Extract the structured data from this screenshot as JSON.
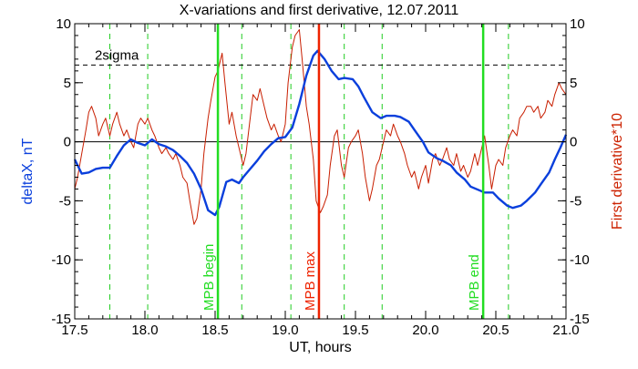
{
  "chart_data": {
    "type": "line",
    "title": "X-variations and first derivative, 12.07.2011",
    "xlabel": "UT, hours",
    "ylabel_left": "deltaX, nT",
    "ylabel_right": "First derivative*10",
    "xlim": [
      17.5,
      21.0
    ],
    "ylim": [
      -15,
      10
    ],
    "xticks": [
      17.5,
      18.0,
      18.5,
      19.0,
      19.5,
      20.0,
      20.5,
      21.0
    ],
    "xtick_labels": [
      "17.5",
      "18.0",
      "18.5",
      "19.0",
      "19.5",
      "20.0",
      "20.5",
      "21.0"
    ],
    "yticks": [
      -15,
      -10,
      -5,
      0,
      5,
      10
    ],
    "ytick_labels": [
      "-15",
      "-10",
      "-5",
      "0",
      "5",
      "10"
    ],
    "colors": {
      "deltaX": "#0a3fdc",
      "derivative": "#c81e00",
      "mpb_begin_end": "#22dd22",
      "mpb_max": "#ee2200",
      "dashed_green": "#22cc22",
      "left_label": "#0a3fdc",
      "right_label": "#cc2200"
    },
    "series": [
      {
        "key": "deltaX",
        "x": [
          17.5,
          17.55,
          17.6,
          17.65,
          17.7,
          17.75,
          17.8,
          17.85,
          17.9,
          17.95,
          18.0,
          18.05,
          18.1,
          18.15,
          18.2,
          18.25,
          18.3,
          18.35,
          18.4,
          18.45,
          18.5,
          18.53,
          18.58,
          18.62,
          18.67,
          18.7,
          18.75,
          18.8,
          18.85,
          18.9,
          18.95,
          19.0,
          19.05,
          19.1,
          19.15,
          19.2,
          19.23,
          19.28,
          19.33,
          19.38,
          19.42,
          19.48,
          19.52,
          19.56,
          19.62,
          19.68,
          19.72,
          19.78,
          19.82,
          19.88,
          19.92,
          19.98,
          20.02,
          20.08,
          20.12,
          20.18,
          20.22,
          20.28,
          20.32,
          20.38,
          20.42,
          20.48,
          20.52,
          20.58,
          20.62,
          20.68,
          20.72,
          20.78,
          20.82,
          20.88,
          20.92,
          20.96,
          21.0
        ],
        "values": [
          -1.5,
          -2.7,
          -2.6,
          -2.3,
          -2.2,
          -2.2,
          -1.2,
          -0.3,
          0.2,
          -0.1,
          -0.3,
          0.2,
          -0.2,
          -0.4,
          -0.7,
          -1.2,
          -1.8,
          -2.7,
          -4.0,
          -5.8,
          -6.2,
          -5.5,
          -3.4,
          -3.2,
          -3.5,
          -3.0,
          -2.3,
          -1.6,
          -0.8,
          -0.2,
          0.3,
          0.4,
          1.2,
          3.2,
          5.6,
          7.3,
          7.7,
          7.0,
          6.0,
          5.3,
          5.4,
          5.3,
          4.7,
          3.8,
          2.5,
          2.0,
          2.2,
          2.2,
          2.1,
          1.7,
          1.0,
          0.0,
          -0.9,
          -1.4,
          -1.6,
          -2.0,
          -2.6,
          -3.2,
          -3.8,
          -4.1,
          -4.3,
          -4.3,
          -4.8,
          -5.4,
          -5.6,
          -5.4,
          -5.0,
          -4.3,
          -3.6,
          -2.6,
          -1.5,
          -0.5,
          0.6
        ]
      },
      {
        "key": "derivative",
        "x": [
          17.5,
          17.52,
          17.55,
          17.58,
          17.6,
          17.62,
          17.65,
          17.67,
          17.7,
          17.72,
          17.75,
          17.77,
          17.8,
          17.82,
          17.85,
          17.87,
          17.9,
          17.92,
          17.95,
          17.97,
          18.0,
          18.02,
          18.05,
          18.07,
          18.1,
          18.12,
          18.15,
          18.17,
          18.2,
          18.22,
          18.25,
          18.27,
          18.3,
          18.32,
          18.35,
          18.37,
          18.4,
          18.42,
          18.45,
          18.47,
          18.5,
          18.52,
          18.55,
          18.57,
          18.6,
          18.62,
          18.65,
          18.67,
          18.7,
          18.72,
          18.75,
          18.77,
          18.8,
          18.82,
          18.85,
          18.87,
          18.9,
          18.92,
          18.95,
          18.97,
          19.0,
          19.02,
          19.05,
          19.07,
          19.1,
          19.12,
          19.15,
          19.17,
          19.2,
          19.22,
          19.25,
          19.27,
          19.3,
          19.32,
          19.35,
          19.37,
          19.4,
          19.42,
          19.45,
          19.47,
          19.5,
          19.52,
          19.55,
          19.57,
          19.6,
          19.62,
          19.65,
          19.67,
          19.7,
          19.72,
          19.75,
          19.77,
          19.8,
          19.82,
          19.85,
          19.87,
          19.9,
          19.92,
          19.95,
          19.97,
          20.0,
          20.02,
          20.05,
          20.07,
          20.1,
          20.12,
          20.15,
          20.17,
          20.2,
          20.22,
          20.25,
          20.27,
          20.3,
          20.32,
          20.35,
          20.37,
          20.4,
          20.42,
          20.45,
          20.47,
          20.5,
          20.52,
          20.55,
          20.57,
          20.6,
          20.62,
          20.65,
          20.67,
          20.7,
          20.72,
          20.75,
          20.77,
          20.8,
          20.82,
          20.85,
          20.87,
          20.9,
          20.92,
          20.95,
          20.97,
          21.0
        ],
        "values": [
          -4.0,
          -3.0,
          -1.0,
          1.0,
          2.5,
          3.0,
          2.0,
          0.5,
          1.5,
          2.0,
          0.5,
          1.5,
          2.5,
          1.5,
          0.5,
          1.0,
          0.0,
          -0.5,
          1.5,
          2.0,
          1.5,
          2.0,
          1.0,
          0.5,
          -0.5,
          -1.0,
          -0.5,
          -1.0,
          -1.5,
          -1.0,
          -2.0,
          -3.0,
          -3.5,
          -5.0,
          -7.0,
          -6.5,
          -4.0,
          -1.0,
          2.0,
          3.5,
          5.5,
          6.0,
          7.5,
          5.0,
          1.5,
          2.5,
          0.5,
          -0.5,
          -2.0,
          -1.0,
          2.0,
          4.0,
          3.5,
          4.5,
          3.0,
          2.0,
          1.0,
          1.5,
          0.5,
          0.0,
          1.5,
          5.0,
          8.0,
          9.0,
          9.5,
          7.0,
          3.0,
          1.5,
          -1.5,
          -5.0,
          -6.0,
          -5.5,
          -4.5,
          -2.0,
          0.5,
          1.0,
          -2.0,
          -3.0,
          -0.5,
          0.0,
          0.5,
          1.0,
          -1.0,
          -3.0,
          -5.0,
          -4.0,
          -2.0,
          -1.5,
          0.0,
          1.0,
          0.5,
          1.5,
          0.5,
          0.0,
          -1.0,
          -2.0,
          -3.0,
          -2.5,
          -4.0,
          -3.0,
          -2.0,
          -3.5,
          -1.5,
          -1.0,
          -2.0,
          -1.5,
          -0.5,
          -1.5,
          -2.0,
          -1.0,
          -2.5,
          -2.0,
          -3.0,
          -2.5,
          -1.0,
          -2.0,
          -0.5,
          0.5,
          -2.0,
          -4.0,
          -2.0,
          -1.5,
          -2.0,
          -0.5,
          0.5,
          1.0,
          0.5,
          2.0,
          2.5,
          3.0,
          3.0,
          2.5,
          3.0,
          2.0,
          2.5,
          3.5,
          3.0,
          4.0,
          5.0,
          4.5,
          4.0
        ]
      }
    ],
    "sigma_line": {
      "y": 6.5,
      "label": "2sigma"
    },
    "vlines": [
      {
        "x": 18.52,
        "label": "MPB begin",
        "style": "solid",
        "color": "#22dd22"
      },
      {
        "x": 19.24,
        "label": "MPB max",
        "style": "solid",
        "color": "#ee2200"
      },
      {
        "x": 20.41,
        "label": "MPB end",
        "style": "solid",
        "color": "#22dd22"
      }
    ],
    "dashed_vlines_x": [
      17.75,
      18.02,
      18.69,
      19.04,
      19.42,
      19.69,
      20.59
    ],
    "zero_line": 0,
    "grid": false
  }
}
